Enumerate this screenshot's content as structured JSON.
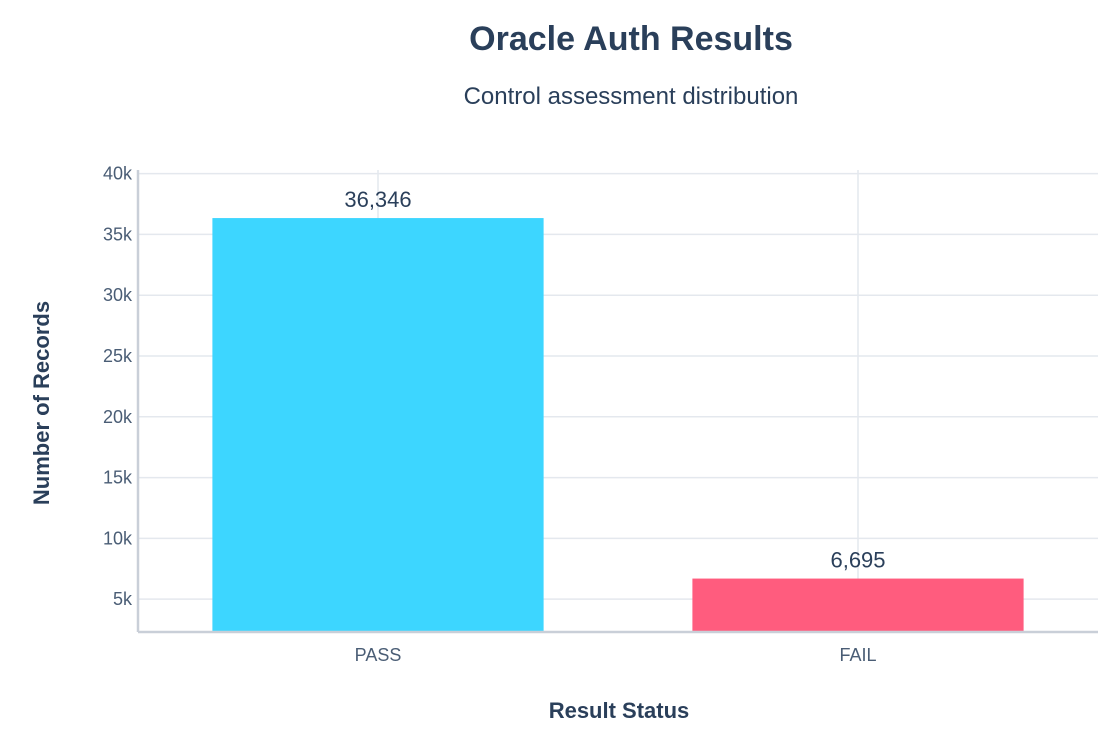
{
  "chart_data": {
    "type": "bar",
    "title": "Oracle Auth Results",
    "subtitle": "Control assessment distribution",
    "xlabel": "Result Status",
    "ylabel": "Number of Records",
    "categories": [
      "PASS",
      "FAIL"
    ],
    "values": [
      36346,
      6695
    ],
    "value_labels": [
      "36,346",
      "6,695"
    ],
    "colors": [
      "#3dd6ff",
      "#ff5c7e"
    ],
    "ylim": [
      2300,
      40300
    ],
    "yticks": [
      5000,
      10000,
      15000,
      20000,
      25000,
      30000,
      35000,
      40000
    ],
    "ytick_labels": [
      "5k",
      "10k",
      "15k",
      "20k",
      "25k",
      "30k",
      "35k",
      "40k"
    ],
    "grid": true,
    "legend": "none"
  }
}
